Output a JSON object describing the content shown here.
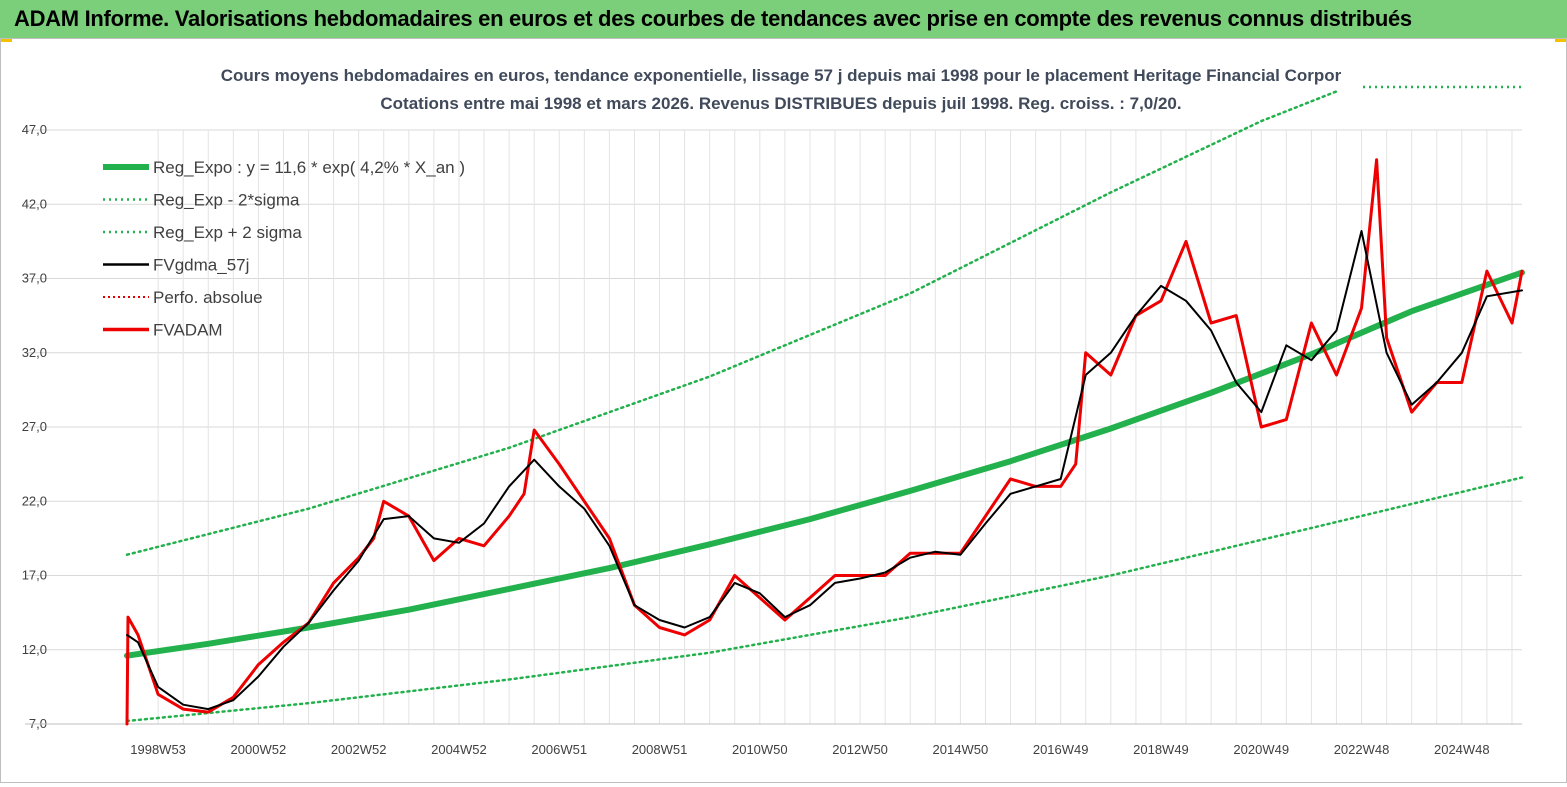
{
  "header": {
    "title": "ADAM Informe. Valorisations hebdomadaires en euros et des courbes de tendances avec prise en compte des revenus connus distribués"
  },
  "chart_data": {
    "type": "line",
    "title": "Cours moyens hebdomadaires en euros, tendance exponentielle, lissage 57 j depuis mai 1998 pour le placement Heritage Financial Corpor",
    "subtitle": "Cotations entre mai 1998 et mars 2026. Revenus DISTRIBUES depuis juil 1998. Reg. croiss. : 7,0/20.",
    "xlabel": "",
    "ylabel": "",
    "ylim": [
      7.0,
      47.0
    ],
    "yticks": [
      "7,0",
      "12,0",
      "17,0",
      "22,0",
      "27,0",
      "32,0",
      "37,0",
      "42,0",
      "47,0"
    ],
    "xlim": [
      1998.38,
      2026.2
    ],
    "xticks": [
      {
        "label": "1998W53",
        "x": 1999.0
      },
      {
        "label": "2000W52",
        "x": 2001.0
      },
      {
        "label": "2002W52",
        "x": 2003.0
      },
      {
        "label": "2004W52",
        "x": 2005.0
      },
      {
        "label": "2006W51",
        "x": 2007.0
      },
      {
        "label": "2008W51",
        "x": 2009.0
      },
      {
        "label": "2010W50",
        "x": 2011.0
      },
      {
        "label": "2012W50",
        "x": 2013.0
      },
      {
        "label": "2014W50",
        "x": 2015.0
      },
      {
        "label": "2016W49",
        "x": 2017.0
      },
      {
        "label": "2018W49",
        "x": 2019.0
      },
      {
        "label": "2020W49",
        "x": 2021.0
      },
      {
        "label": "2022W48",
        "x": 2023.0
      },
      {
        "label": "2024W48",
        "x": 2025.0
      }
    ],
    "grid": true,
    "legend_position": "top-left",
    "series": [
      {
        "name": "Reg_Expo : y = 11,6 * exp( 4,2% *  X_an )",
        "color": "#22b14c",
        "style": "solid-thick",
        "x": [
          1998.38,
          2000.0,
          2002.0,
          2004.0,
          2006.0,
          2008.0,
          2010.0,
          2012.0,
          2014.0,
          2016.0,
          2018.0,
          2020.0,
          2022.0,
          2024.0,
          2026.2
        ],
        "y": [
          11.6,
          12.4,
          13.5,
          14.7,
          16.1,
          17.5,
          19.1,
          20.8,
          22.7,
          24.7,
          26.9,
          29.3,
          31.9,
          34.8,
          37.4
        ]
      },
      {
        "name": "Reg_Exp - 2*sigma",
        "color": "#22b14c",
        "style": "dotted",
        "x": [
          1998.38,
          2002.0,
          2006.0,
          2010.0,
          2014.0,
          2018.0,
          2022.0,
          2026.2
        ],
        "y": [
          7.2,
          8.4,
          10.0,
          11.8,
          14.2,
          17.0,
          20.2,
          23.6
        ]
      },
      {
        "name": "Reg_Exp + 2 sigma",
        "color": "#22b14c",
        "style": "dotted",
        "x": [
          1998.38,
          2002.0,
          2006.0,
          2010.0,
          2014.0,
          2018.0,
          2021.0,
          2022.5
        ],
        "y": [
          18.4,
          21.5,
          25.6,
          30.4,
          36.0,
          42.8,
          47.6,
          49.6
        ]
      },
      {
        "name": "FVgdma_57j",
        "color": "#000000",
        "style": "solid-thin",
        "x": [
          1998.38,
          1998.6,
          1999.0,
          1999.5,
          2000.0,
          2000.5,
          2001.0,
          2001.5,
          2002.0,
          2002.5,
          2003.0,
          2003.5,
          2004.0,
          2004.5,
          2005.0,
          2005.5,
          2006.0,
          2006.5,
          2007.0,
          2007.5,
          2008.0,
          2008.5,
          2009.0,
          2009.5,
          2010.0,
          2010.5,
          2011.0,
          2011.5,
          2012.0,
          2012.5,
          2013.0,
          2013.5,
          2014.0,
          2014.5,
          2015.0,
          2015.5,
          2016.0,
          2016.5,
          2017.0,
          2017.5,
          2018.0,
          2018.5,
          2019.0,
          2019.5,
          2020.0,
          2020.5,
          2021.0,
          2021.5,
          2022.0,
          2022.5,
          2023.0,
          2023.5,
          2024.0,
          2024.5,
          2025.0,
          2025.5,
          2026.2
        ],
        "y": [
          13.0,
          12.5,
          9.5,
          8.3,
          8.0,
          8.6,
          10.2,
          12.2,
          13.8,
          16.0,
          18.0,
          20.8,
          21.0,
          19.5,
          19.2,
          20.5,
          23.0,
          24.8,
          23.0,
          21.5,
          19.0,
          15.0,
          14.0,
          13.5,
          14.2,
          16.5,
          15.8,
          14.2,
          15.0,
          16.5,
          16.8,
          17.2,
          18.2,
          18.6,
          18.4,
          20.5,
          22.5,
          23.0,
          23.5,
          30.5,
          32.0,
          34.5,
          36.5,
          35.5,
          33.5,
          30.0,
          28.0,
          32.5,
          31.5,
          33.5,
          40.2,
          32.0,
          28.5,
          30.0,
          32.0,
          35.8,
          36.2
        ]
      },
      {
        "name": "Perfo. absolue",
        "color": "#e00000",
        "style": "dotted",
        "x": [
          1998.38
        ],
        "y": [
          7.0
        ]
      },
      {
        "name": "FVADAM",
        "color": "#ee0000",
        "style": "solid-thick",
        "x": [
          1998.38,
          1998.4,
          1998.6,
          1999.0,
          1999.5,
          2000.0,
          2000.5,
          2001.0,
          2001.5,
          2002.0,
          2002.5,
          2003.0,
          2003.3,
          2003.5,
          2004.0,
          2004.5,
          2005.0,
          2005.5,
          2006.0,
          2006.3,
          2006.5,
          2007.0,
          2007.5,
          2008.0,
          2008.5,
          2009.0,
          2009.5,
          2010.0,
          2010.5,
          2011.0,
          2011.5,
          2012.0,
          2012.5,
          2013.0,
          2013.5,
          2014.0,
          2014.5,
          2015.0,
          2015.5,
          2016.0,
          2016.5,
          2017.0,
          2017.3,
          2017.5,
          2018.0,
          2018.5,
          2019.0,
          2019.5,
          2020.0,
          2020.5,
          2021.0,
          2021.5,
          2022.0,
          2022.5,
          2023.0,
          2023.3,
          2023.5,
          2024.0,
          2024.5,
          2025.0,
          2025.5,
          2026.0,
          2026.2
        ],
        "y": [
          7.0,
          14.2,
          13.0,
          9.0,
          8.0,
          7.8,
          8.8,
          11.0,
          12.5,
          13.8,
          16.5,
          18.2,
          19.5,
          22.0,
          21.0,
          18.0,
          19.5,
          19.0,
          21.0,
          22.5,
          26.8,
          24.5,
          22.0,
          19.5,
          15.0,
          13.5,
          13.0,
          14.0,
          17.0,
          15.5,
          14.0,
          15.5,
          17.0,
          17.0,
          17.0,
          18.5,
          18.5,
          18.5,
          21.0,
          23.5,
          23.0,
          23.0,
          24.5,
          32.0,
          30.5,
          34.5,
          35.5,
          39.5,
          34.0,
          34.5,
          27.0,
          27.5,
          34.0,
          30.5,
          35.0,
          45.0,
          33.0,
          28.0,
          30.0,
          30.0,
          37.5,
          34.0,
          37.5
        ]
      }
    ]
  }
}
